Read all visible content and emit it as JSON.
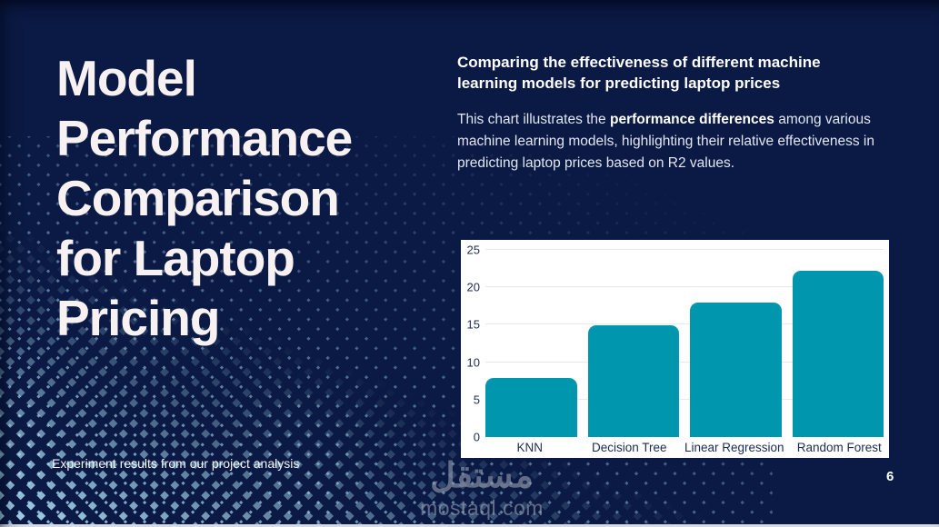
{
  "slide": {
    "page_number": "6",
    "background_color": "#0b1a44",
    "accent_dot_color": "#a9d9f1"
  },
  "title": {
    "lines": [
      "Model",
      "Performance",
      "Comparison",
      "for Laptop",
      "Pricing"
    ]
  },
  "intro": {
    "heading": "Comparing the effectiveness of different machine learning models for predicting laptop prices",
    "body_pre": "This chart illustrates the ",
    "body_bold": "performance differences",
    "body_post": " among various machine learning models, highlighting their relative effectiveness in predicting laptop prices based on R2 values."
  },
  "footer": {
    "note": "Experiment results from our project analysis"
  },
  "watermark": {
    "arabic": "مستقل",
    "domain": "mostaql.com"
  },
  "chart_data": {
    "type": "bar",
    "categories": [
      "KNN",
      "Decision Tree",
      "Linear Regression",
      "Random Forest"
    ],
    "values": [
      7.9,
      14.9,
      18.0,
      22.2
    ],
    "title": "",
    "xlabel": "",
    "ylabel": "",
    "ylim": [
      0,
      25
    ],
    "yticks": [
      0,
      5,
      10,
      15,
      20,
      25
    ],
    "bar_color": "#0096ae",
    "grid": true,
    "legend": false,
    "background": "#ffffff"
  }
}
